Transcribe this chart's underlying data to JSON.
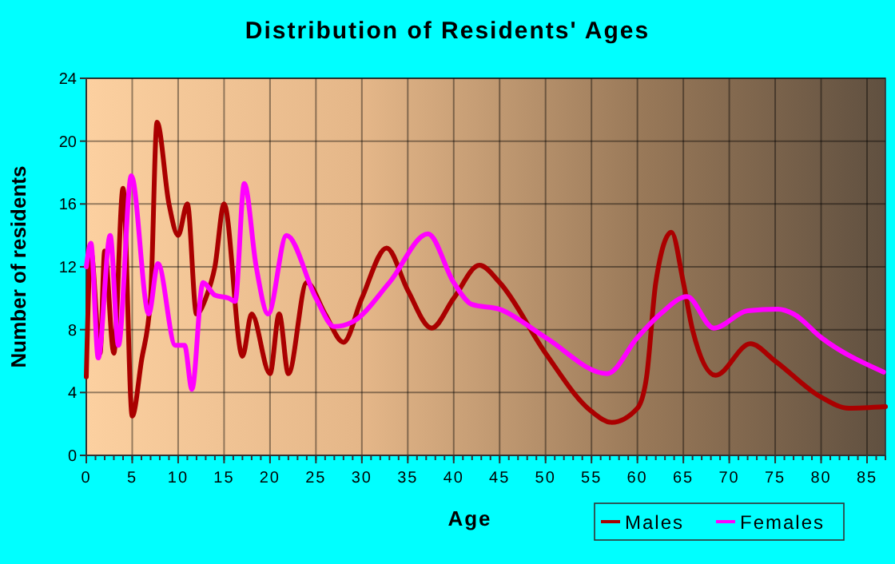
{
  "chart_data": {
    "type": "line",
    "title": "Distribution of Residents' Ages",
    "xlabel": "Age",
    "ylabel": "Number of residents",
    "xlim": [
      0,
      87
    ],
    "ylim": [
      0,
      24
    ],
    "xticks": [
      0,
      5,
      10,
      15,
      20,
      25,
      30,
      35,
      40,
      45,
      50,
      55,
      60,
      65,
      70,
      75,
      80,
      85
    ],
    "yticks": [
      0,
      4,
      8,
      12,
      16,
      20,
      24
    ],
    "grid": true,
    "legend": "bottom right",
    "marker": "none",
    "line_style": "solid",
    "series": [
      {
        "name": "Males",
        "color": "#aa0000",
        "x": [
          0,
          0.5,
          1.5,
          2,
          3,
          4,
          5,
          6,
          7,
          7.7,
          9,
          10,
          11,
          12,
          13,
          14,
          15,
          17,
          18,
          20,
          21,
          22,
          24,
          26,
          28,
          30,
          32.7,
          35,
          37.6,
          40,
          42.8,
          45,
          50,
          55,
          57.2,
          60,
          61,
          62,
          63.7,
          65,
          66,
          68.5,
          72.3,
          75,
          80,
          83,
          87
        ],
        "values": [
          5,
          13,
          6.5,
          13,
          6.5,
          17,
          2.5,
          6,
          10,
          21.2,
          16,
          14,
          16,
          9,
          10,
          12,
          16,
          6.3,
          9,
          5.2,
          9,
          5.2,
          11,
          9,
          7.2,
          10,
          13.2,
          10.5,
          8.1,
          10,
          12.1,
          11,
          6.5,
          2.8,
          2.1,
          3,
          5,
          11,
          14.2,
          11,
          8,
          5.1,
          7.1,
          6,
          3.7,
          3,
          3.1
        ]
      },
      {
        "name": "Females",
        "color": "#ff00ff",
        "x": [
          0,
          0.5,
          1.3,
          2.6,
          3.5,
          4.9,
          6.8,
          7.8,
          9.7,
          10.7,
          11.5,
          12.7,
          14,
          15.5,
          16.2,
          17.2,
          18.5,
          19.8,
          21.8,
          25,
          27,
          29,
          33,
          37.2,
          40,
          42,
          45,
          50,
          56.7,
          60,
          62.5,
          65.4,
          68.3,
          72,
          75.3,
          77,
          80,
          86.8
        ],
        "values": [
          12,
          13.5,
          6.2,
          14,
          7,
          17.8,
          9,
          12.2,
          7,
          7,
          4.2,
          11,
          10.2,
          10,
          9.8,
          17.3,
          12,
          9,
          14,
          10,
          8.2,
          8.5,
          11,
          14.1,
          11,
          9.6,
          9.3,
          7.5,
          5.2,
          7.5,
          9,
          10.1,
          8.1,
          9.2,
          9.3,
          9,
          7.5,
          5.3
        ]
      }
    ]
  }
}
